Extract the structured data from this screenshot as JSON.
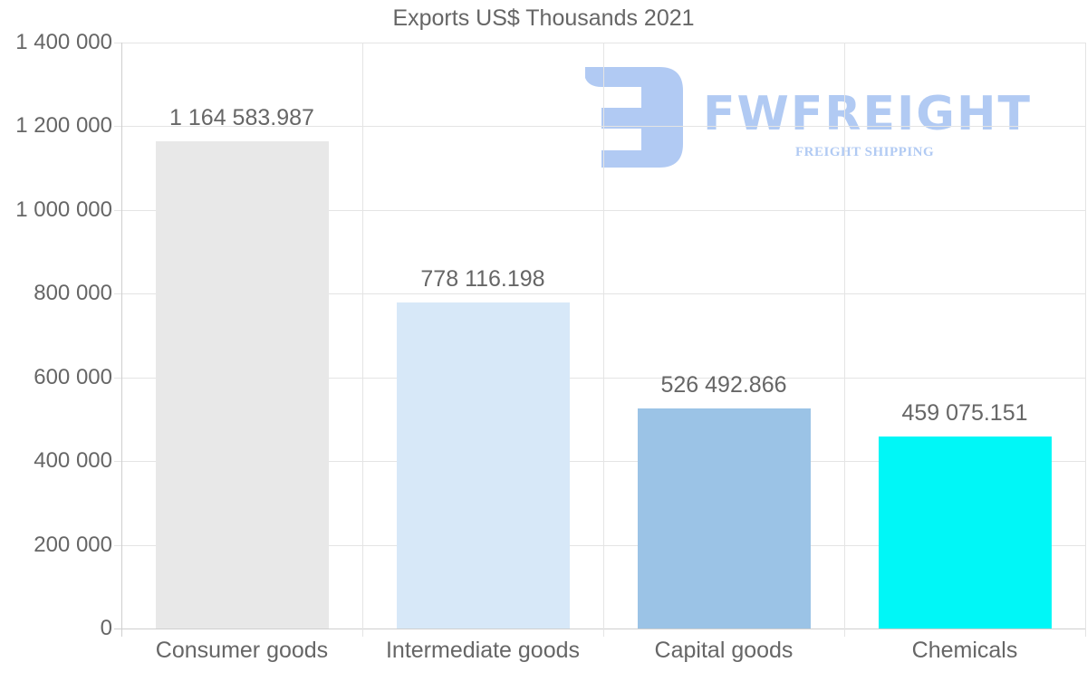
{
  "chart_data": {
    "type": "bar",
    "title": "Exports US$ Thousands 2021",
    "xlabel": "",
    "ylabel": "",
    "categories": [
      "Consumer goods",
      "Intermediate goods",
      "Capital goods",
      "Chemicals"
    ],
    "values": [
      1164583.987,
      778116.198,
      526492.866,
      459075.151
    ],
    "value_labels": [
      "1 164 583.987",
      "778 116.198",
      "526 492.866",
      "459 075.151"
    ],
    "bar_colors": [
      "#e8e8e8",
      "#d7e8f8",
      "#9bc3e6",
      "#00f7f7"
    ],
    "ylim": [
      0,
      1400000
    ],
    "yticks": [
      0,
      200000,
      400000,
      600000,
      800000,
      1000000,
      1200000,
      1400000
    ],
    "ytick_labels": [
      "0",
      "200 000",
      "400 000",
      "600 000",
      "800 000",
      "1 000 000",
      "1 200 000",
      "1 400 000"
    ],
    "grid": true,
    "legend": "none"
  },
  "watermark": {
    "brand": "FWFREIGHT",
    "tagline": "FREIGHT SHIPPING",
    "color": "#adc8f3"
  }
}
